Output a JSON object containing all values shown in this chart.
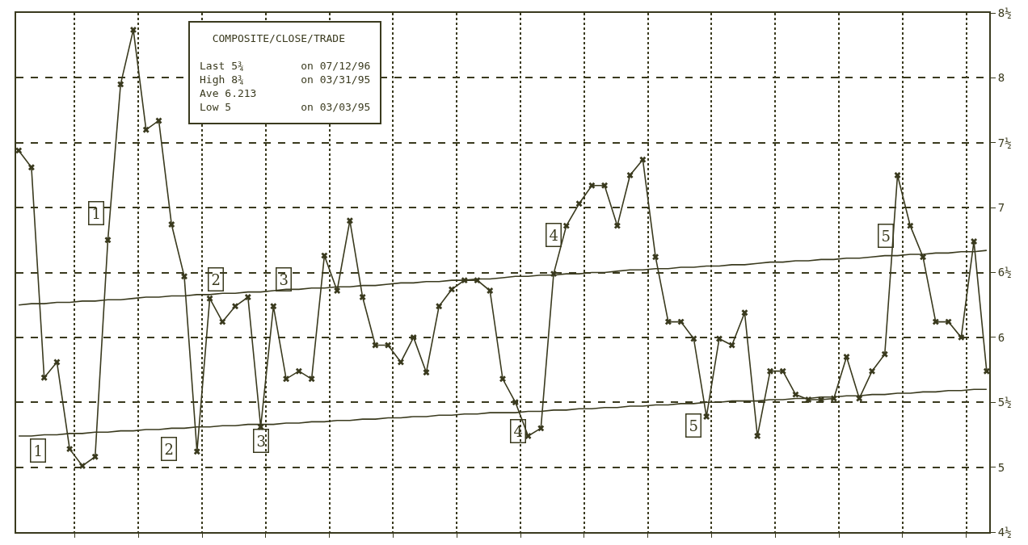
{
  "chart_data": {
    "type": "line",
    "categories": [
      null,
      null,
      null,
      null,
      null,
      null,
      null,
      null,
      null,
      null,
      null,
      null,
      null,
      null,
      null,
      null,
      null,
      null,
      null,
      null,
      null,
      null,
      null,
      null,
      null,
      null,
      null,
      null,
      null,
      null,
      null,
      null,
      null,
      null,
      null,
      null,
      null,
      null,
      null,
      null,
      null,
      null,
      null,
      null,
      null,
      null,
      null,
      null,
      null,
      null,
      null,
      null,
      null,
      null,
      null,
      null,
      null,
      null,
      null,
      null,
      null,
      null,
      null,
      null,
      null,
      null,
      null,
      null,
      null,
      null,
      null,
      null,
      null,
      null,
      null,
      null,
      null
    ],
    "series": [
      {
        "color": "#3a3a1e",
        "marker": "cross",
        "values": [
          7.44,
          7.31,
          5.69,
          5.81,
          5.14,
          5.01,
          5.08,
          6.75,
          7.95,
          8.37,
          7.6,
          7.67,
          6.87,
          6.47,
          5.12,
          6.3,
          6.12,
          6.24,
          6.31,
          5.31,
          6.24,
          5.68,
          5.74,
          5.68,
          6.63,
          6.36,
          6.9,
          6.31,
          5.94,
          5.94,
          5.81,
          6.0,
          5.73,
          6.24,
          6.37,
          6.44,
          6.44,
          6.36,
          5.68,
          5.5,
          5.24,
          5.3,
          6.49,
          6.86,
          7.03,
          7.17,
          7.17,
          6.86,
          7.25,
          7.37,
          6.62,
          6.12,
          6.12,
          5.99,
          5.39,
          5.99,
          5.94,
          6.19,
          5.24,
          5.74,
          5.74,
          5.56,
          5.52,
          5.52,
          5.53,
          5.85,
          5.53,
          5.74,
          5.87,
          7.25,
          6.86,
          6.62,
          6.12,
          6.12,
          6.0,
          6.74,
          5.74
        ]
      },
      {
        "color": "#3a3a1e",
        "marker": "none",
        "values": [
          6.25,
          6.26,
          6.26,
          6.27,
          6.27,
          6.28,
          6.28,
          6.29,
          6.29,
          6.3,
          6.31,
          6.31,
          6.32,
          6.32,
          6.33,
          6.33,
          6.34,
          6.34,
          6.35,
          6.35,
          6.36,
          6.37,
          6.37,
          6.38,
          6.38,
          6.39,
          6.39,
          6.4,
          6.4,
          6.41,
          6.42,
          6.42,
          6.43,
          6.43,
          6.44,
          6.44,
          6.45,
          6.45,
          6.46,
          6.47,
          6.47,
          6.48,
          6.48,
          6.49,
          6.49,
          6.5,
          6.5,
          6.51,
          6.52,
          6.52,
          6.53,
          6.53,
          6.54,
          6.54,
          6.55,
          6.55,
          6.56,
          6.56,
          6.57,
          6.58,
          6.58,
          6.59,
          6.59,
          6.6,
          6.6,
          6.61,
          6.61,
          6.62,
          6.63,
          6.63,
          6.64,
          6.64,
          6.65,
          6.65,
          6.66,
          6.66,
          6.67
        ]
      },
      {
        "color": "#3a3a1e",
        "marker": "none",
        "values": [
          5.24,
          5.24,
          5.25,
          5.25,
          5.26,
          5.26,
          5.27,
          5.27,
          5.28,
          5.28,
          5.29,
          5.29,
          5.3,
          5.3,
          5.31,
          5.31,
          5.32,
          5.32,
          5.33,
          5.33,
          5.33,
          5.34,
          5.34,
          5.35,
          5.35,
          5.36,
          5.36,
          5.37,
          5.37,
          5.38,
          5.38,
          5.39,
          5.39,
          5.4,
          5.4,
          5.41,
          5.41,
          5.42,
          5.42,
          5.42,
          5.43,
          5.43,
          5.44,
          5.44,
          5.45,
          5.45,
          5.46,
          5.46,
          5.47,
          5.47,
          5.48,
          5.48,
          5.49,
          5.49,
          5.5,
          5.5,
          5.51,
          5.51,
          5.51,
          5.52,
          5.52,
          5.53,
          5.53,
          5.54,
          5.54,
          5.55,
          5.55,
          5.56,
          5.56,
          5.57,
          5.57,
          5.58,
          5.58,
          5.59,
          5.59,
          5.6,
          5.6
        ]
      }
    ],
    "ylim": [
      4.5,
      8.5
    ],
    "yticks": [
      {
        "value": 4.5,
        "label": "4½"
      },
      5,
      {
        "value": 5.5,
        "label": "5½"
      },
      6,
      {
        "value": 6.5,
        "label": "6½"
      },
      7,
      {
        "value": 7.5,
        "label": "7½"
      },
      8,
      {
        "value": 8.5,
        "label": "8½"
      }
    ],
    "grid": true,
    "tick_labels": "y",
    "line_style": "solid",
    "annotations": [
      "COMPOSITE/CLOSE/TRADE",
      "Last 5¾",
      "on 07/12/96",
      "High 8¾",
      "on 03/31/95",
      "Ave 6.213",
      "Low 5",
      "on 03/03/95",
      {
        "text": "1",
        "y": 6.96
      },
      {
        "text": "1",
        "y": 5.13
      },
      {
        "text": "2",
        "y": 6.45
      },
      {
        "text": "2",
        "y": 5.14
      },
      {
        "text": "3",
        "y": 6.45
      },
      {
        "text": "3",
        "y": 5.2
      },
      {
        "text": "4",
        "y": 6.79
      },
      {
        "text": "4",
        "y": 5.28
      },
      {
        "text": "5",
        "y": 6.78
      },
      {
        "text": "5",
        "y": 5.32
      }
    ]
  }
}
